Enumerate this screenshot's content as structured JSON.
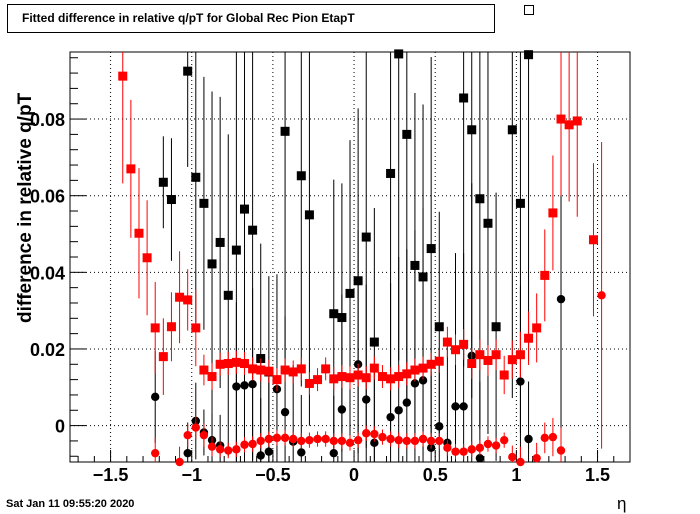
{
  "chart_data": {
    "type": "scatter",
    "title": "Fitted difference in relative q/pT for Global Rec Pion EtapT",
    "xlabel": "η",
    "ylabel": "difference in relative q/pT",
    "xlim": [
      -1.75,
      1.7
    ],
    "ylim": [
      -0.0095,
      0.0975
    ],
    "x_ticks": [
      -1.5,
      -1,
      -0.5,
      0,
      0.5,
      1,
      1.5
    ],
    "x_tick_labels": [
      "−1.5",
      "−1",
      "−0.5",
      "0",
      "0.5",
      "1",
      "1.5"
    ],
    "y_ticks": [
      0,
      0.02,
      0.04,
      0.06,
      0.08
    ],
    "y_tick_labels": [
      "0",
      "0.02",
      "0.04",
      "0.06",
      "0.08"
    ],
    "grid": true,
    "series": [
      {
        "marker": "square",
        "color": "#000000",
        "points": [
          {
            "x": -1.175,
            "y": 0.0635,
            "err": 0.012
          },
          {
            "x": -1.125,
            "y": 0.059,
            "err": 0.016
          },
          {
            "x": -1.025,
            "y": 0.0925,
            "err": 0.025
          },
          {
            "x": -0.975,
            "y": 0.0648,
            "err": 0.038
          },
          {
            "x": -0.925,
            "y": 0.058,
            "err": 0.033
          },
          {
            "x": -0.875,
            "y": 0.0422,
            "err": 0.045
          },
          {
            "x": -0.825,
            "y": 0.0478,
            "err": 0.038
          },
          {
            "x": -0.775,
            "y": 0.034,
            "err": 0.042
          },
          {
            "x": -0.725,
            "y": 0.0458,
            "err": 0.055
          },
          {
            "x": -0.675,
            "y": 0.0565,
            "err": 0.055
          },
          {
            "x": -0.625,
            "y": 0.051,
            "err": 0.06
          },
          {
            "x": -0.575,
            "y": 0.0175,
            "err": 0.03
          },
          {
            "x": -0.525,
            "y": 0.014,
            "err": 0.025
          },
          {
            "x": -0.425,
            "y": 0.0768,
            "err": 0.065
          },
          {
            "x": -0.325,
            "y": 0.0652,
            "err": 0.055
          },
          {
            "x": -0.275,
            "y": 0.055,
            "err": 0.055
          },
          {
            "x": -0.125,
            "y": 0.0292,
            "err": 0.035
          },
          {
            "x": -0.075,
            "y": 0.0282,
            "err": 0.035
          },
          {
            "x": -0.025,
            "y": 0.0345,
            "err": 0.04
          },
          {
            "x": 0.025,
            "y": 0.0378,
            "err": 0.045
          },
          {
            "x": 0.075,
            "y": 0.0492,
            "err": 0.055
          },
          {
            "x": 0.125,
            "y": 0.0218,
            "err": 0.035
          },
          {
            "x": 0.225,
            "y": 0.0658,
            "err": 0.07
          },
          {
            "x": 0.275,
            "y": 0.097,
            "err": 0.08
          },
          {
            "x": 0.325,
            "y": 0.076,
            "err": 0.07
          },
          {
            "x": 0.375,
            "y": 0.0418,
            "err": 0.045
          },
          {
            "x": 0.425,
            "y": 0.0388,
            "err": 0.045
          },
          {
            "x": 0.475,
            "y": 0.0462,
            "err": 0.05
          },
          {
            "x": 0.525,
            "y": 0.0258,
            "err": 0.03
          },
          {
            "x": 0.675,
            "y": 0.0855,
            "err": 0.07
          },
          {
            "x": 0.725,
            "y": 0.0772,
            "err": 0.07
          },
          {
            "x": 0.775,
            "y": 0.0592,
            "err": 0.06
          },
          {
            "x": 0.825,
            "y": 0.0528,
            "err": 0.055
          },
          {
            "x": 0.875,
            "y": 0.0258,
            "err": 0.035
          },
          {
            "x": 0.975,
            "y": 0.0772,
            "err": 0.07
          },
          {
            "x": 1.025,
            "y": 0.058,
            "err": 0.06
          },
          {
            "x": 1.075,
            "y": 0.0968,
            "err": 0.08
          }
        ]
      },
      {
        "marker": "circle",
        "color": "#000000",
        "points": [
          {
            "x": -1.225,
            "y": 0.0075,
            "err": 0.012
          },
          {
            "x": -1.025,
            "y": -0.0072,
            "err": 0.008
          },
          {
            "x": -0.975,
            "y": 0.0012,
            "err": 0.01
          },
          {
            "x": -0.925,
            "y": -0.0018,
            "err": 0.006
          },
          {
            "x": -0.875,
            "y": -0.0038,
            "err": 0.007
          },
          {
            "x": -0.825,
            "y": -0.0052,
            "err": 0.008
          },
          {
            "x": -0.725,
            "y": 0.0102,
            "err": 0.022
          },
          {
            "x": -0.675,
            "y": 0.0105,
            "err": 0.02
          },
          {
            "x": -0.625,
            "y": 0.0108,
            "err": 0.025
          },
          {
            "x": -0.575,
            "y": -0.0078,
            "err": 0.015
          },
          {
            "x": -0.525,
            "y": -0.0068,
            "err": 0.02
          },
          {
            "x": -0.475,
            "y": 0.0095,
            "err": 0.03
          },
          {
            "x": -0.425,
            "y": 0.0035,
            "err": 0.025
          },
          {
            "x": -0.375,
            "y": -0.0042,
            "err": 0.02
          },
          {
            "x": -0.325,
            "y": -0.007,
            "err": 0.015
          },
          {
            "x": -0.125,
            "y": -0.0072,
            "err": 0.015
          },
          {
            "x": -0.075,
            "y": 0.0042,
            "err": 0.03
          },
          {
            "x": 0.025,
            "y": 0.016,
            "err": 0.035
          },
          {
            "x": 0.075,
            "y": 0.0068,
            "err": 0.03
          },
          {
            "x": 0.125,
            "y": -0.0045,
            "err": 0.02
          },
          {
            "x": 0.225,
            "y": 0.0022,
            "err": 0.035
          },
          {
            "x": 0.275,
            "y": 0.004,
            "err": 0.04
          },
          {
            "x": 0.325,
            "y": 0.006,
            "err": 0.04
          },
          {
            "x": 0.375,
            "y": 0.011,
            "err": 0.04
          },
          {
            "x": 0.425,
            "y": 0.0118,
            "err": 0.045
          },
          {
            "x": 0.475,
            "y": -0.0058,
            "err": 0.02
          },
          {
            "x": 0.525,
            "y": -0.0002,
            "err": 0.02
          },
          {
            "x": 0.575,
            "y": -0.0045,
            "err": 0.025
          },
          {
            "x": 0.625,
            "y": 0.005,
            "err": 0.04
          },
          {
            "x": 0.675,
            "y": 0.005,
            "err": 0.04
          },
          {
            "x": 0.725,
            "y": 0.0182,
            "err": 0.045
          },
          {
            "x": 0.775,
            "y": -0.0085,
            "err": 0.02
          },
          {
            "x": 1.025,
            "y": 0.0115,
            "err": 0.025
          },
          {
            "x": 1.075,
            "y": -0.0035,
            "err": 0.015
          },
          {
            "x": 1.275,
            "y": 0.033,
            "err": 0.045
          }
        ]
      },
      {
        "marker": "square",
        "color": "#ff0000",
        "points": [
          {
            "x": -1.425,
            "y": 0.0912,
            "err": 0.028
          },
          {
            "x": -1.375,
            "y": 0.067,
            "err": 0.018
          },
          {
            "x": -1.325,
            "y": 0.0502,
            "err": 0.017
          },
          {
            "x": -1.275,
            "y": 0.0438,
            "err": 0.015
          },
          {
            "x": -1.225,
            "y": 0.0255,
            "err": 0.012
          },
          {
            "x": -1.175,
            "y": 0.018,
            "err": 0.01
          },
          {
            "x": -1.125,
            "y": 0.0258,
            "err": 0.009
          },
          {
            "x": -1.075,
            "y": 0.0335,
            "err": 0.012
          },
          {
            "x": -1.025,
            "y": 0.0328,
            "err": 0.008
          },
          {
            "x": -0.975,
            "y": 0.0255,
            "err": 0.01
          },
          {
            "x": -0.925,
            "y": 0.0145,
            "err": 0.004
          },
          {
            "x": -0.875,
            "y": 0.0128,
            "err": 0.0035
          },
          {
            "x": -0.825,
            "y": 0.016,
            "err": 0.003
          },
          {
            "x": -0.775,
            "y": 0.0162,
            "err": 0.003
          },
          {
            "x": -0.725,
            "y": 0.0165,
            "err": 0.003
          },
          {
            "x": -0.675,
            "y": 0.0162,
            "err": 0.003
          },
          {
            "x": -0.625,
            "y": 0.0148,
            "err": 0.003
          },
          {
            "x": -0.575,
            "y": 0.0145,
            "err": 0.003
          },
          {
            "x": -0.525,
            "y": 0.0142,
            "err": 0.003
          },
          {
            "x": -0.475,
            "y": 0.012,
            "err": 0.003
          },
          {
            "x": -0.425,
            "y": 0.0145,
            "err": 0.003
          },
          {
            "x": -0.375,
            "y": 0.014,
            "err": 0.003
          },
          {
            "x": -0.325,
            "y": 0.0148,
            "err": 0.003
          },
          {
            "x": -0.275,
            "y": 0.011,
            "err": 0.003
          },
          {
            "x": -0.225,
            "y": 0.012,
            "err": 0.003
          },
          {
            "x": -0.175,
            "y": 0.0148,
            "err": 0.003
          },
          {
            "x": -0.125,
            "y": 0.0122,
            "err": 0.003
          },
          {
            "x": -0.075,
            "y": 0.0128,
            "err": 0.003
          },
          {
            "x": -0.025,
            "y": 0.0125,
            "err": 0.003
          },
          {
            "x": 0.025,
            "y": 0.0132,
            "err": 0.003
          },
          {
            "x": 0.075,
            "y": 0.0125,
            "err": 0.003
          },
          {
            "x": 0.125,
            "y": 0.015,
            "err": 0.003
          },
          {
            "x": 0.175,
            "y": 0.0128,
            "err": 0.003
          },
          {
            "x": 0.225,
            "y": 0.0122,
            "err": 0.003
          },
          {
            "x": 0.275,
            "y": 0.0128,
            "err": 0.003
          },
          {
            "x": 0.325,
            "y": 0.0135,
            "err": 0.003
          },
          {
            "x": 0.375,
            "y": 0.0145,
            "err": 0.003
          },
          {
            "x": 0.425,
            "y": 0.015,
            "err": 0.003
          },
          {
            "x": 0.475,
            "y": 0.016,
            "err": 0.003
          },
          {
            "x": 0.525,
            "y": 0.0168,
            "err": 0.003
          },
          {
            "x": 0.575,
            "y": 0.0218,
            "err": 0.004
          },
          {
            "x": 0.625,
            "y": 0.0198,
            "err": 0.004
          },
          {
            "x": 0.675,
            "y": 0.0212,
            "err": 0.004
          },
          {
            "x": 0.725,
            "y": 0.0162,
            "err": 0.004
          },
          {
            "x": 0.775,
            "y": 0.0185,
            "err": 0.004
          },
          {
            "x": 0.825,
            "y": 0.017,
            "err": 0.004
          },
          {
            "x": 0.875,
            "y": 0.0185,
            "err": 0.004
          },
          {
            "x": 0.925,
            "y": 0.0132,
            "err": 0.005
          },
          {
            "x": 0.975,
            "y": 0.0172,
            "err": 0.005
          },
          {
            "x": 1.025,
            "y": 0.0185,
            "err": 0.006
          },
          {
            "x": 1.075,
            "y": 0.0228,
            "err": 0.007
          },
          {
            "x": 1.125,
            "y": 0.0255,
            "err": 0.009
          },
          {
            "x": 1.175,
            "y": 0.0392,
            "err": 0.012
          },
          {
            "x": 1.225,
            "y": 0.0555,
            "err": 0.015
          },
          {
            "x": 1.275,
            "y": 0.08,
            "err": 0.02
          },
          {
            "x": 1.325,
            "y": 0.0785,
            "err": 0.02
          },
          {
            "x": 1.375,
            "y": 0.0795,
            "err": 0.025
          },
          {
            "x": 1.475,
            "y": 0.0485,
            "err": 0.02
          }
        ]
      },
      {
        "marker": "circle",
        "color": "#ff0000",
        "points": [
          {
            "x": -1.225,
            "y": -0.0072,
            "err": 0.004
          },
          {
            "x": -1.075,
            "y": -0.0095,
            "err": 0.004
          },
          {
            "x": -1.025,
            "y": -0.0025,
            "err": 0.003
          },
          {
            "x": -0.975,
            "y": -0.0005,
            "err": 0.003
          },
          {
            "x": -0.925,
            "y": -0.0025,
            "err": 0.003
          },
          {
            "x": -0.875,
            "y": -0.0055,
            "err": 0.0025
          },
          {
            "x": -0.825,
            "y": -0.0062,
            "err": 0.002
          },
          {
            "x": -0.775,
            "y": -0.0065,
            "err": 0.002
          },
          {
            "x": -0.725,
            "y": -0.0062,
            "err": 0.002
          },
          {
            "x": -0.675,
            "y": -0.005,
            "err": 0.002
          },
          {
            "x": -0.625,
            "y": -0.0048,
            "err": 0.002
          },
          {
            "x": -0.575,
            "y": -0.004,
            "err": 0.002
          },
          {
            "x": -0.525,
            "y": -0.0035,
            "err": 0.002
          },
          {
            "x": -0.475,
            "y": -0.0032,
            "err": 0.002
          },
          {
            "x": -0.425,
            "y": -0.0032,
            "err": 0.002
          },
          {
            "x": -0.375,
            "y": -0.0035,
            "err": 0.002
          },
          {
            "x": -0.325,
            "y": -0.004,
            "err": 0.002
          },
          {
            "x": -0.275,
            "y": -0.0038,
            "err": 0.002
          },
          {
            "x": -0.225,
            "y": -0.0035,
            "err": 0.002
          },
          {
            "x": -0.175,
            "y": -0.0035,
            "err": 0.002
          },
          {
            "x": -0.125,
            "y": -0.004,
            "err": 0.002
          },
          {
            "x": -0.075,
            "y": -0.004,
            "err": 0.002
          },
          {
            "x": -0.025,
            "y": -0.0045,
            "err": 0.002
          },
          {
            "x": 0.025,
            "y": -0.0038,
            "err": 0.002
          },
          {
            "x": 0.075,
            "y": -0.002,
            "err": 0.002
          },
          {
            "x": 0.125,
            "y": -0.0022,
            "err": 0.002
          },
          {
            "x": 0.175,
            "y": -0.003,
            "err": 0.002
          },
          {
            "x": 0.225,
            "y": -0.0035,
            "err": 0.002
          },
          {
            "x": 0.275,
            "y": -0.0038,
            "err": 0.002
          },
          {
            "x": 0.325,
            "y": -0.004,
            "err": 0.002
          },
          {
            "x": 0.375,
            "y": -0.004,
            "err": 0.002
          },
          {
            "x": 0.425,
            "y": -0.0035,
            "err": 0.002
          },
          {
            "x": 0.475,
            "y": -0.004,
            "err": 0.002
          },
          {
            "x": 0.525,
            "y": -0.004,
            "err": 0.002
          },
          {
            "x": 0.575,
            "y": -0.0058,
            "err": 0.002
          },
          {
            "x": 0.625,
            "y": -0.0068,
            "err": 0.002
          },
          {
            "x": 0.675,
            "y": -0.0068,
            "err": 0.002
          },
          {
            "x": 0.725,
            "y": -0.0062,
            "err": 0.002
          },
          {
            "x": 0.775,
            "y": -0.0058,
            "err": 0.002
          },
          {
            "x": 0.825,
            "y": -0.0048,
            "err": 0.002
          },
          {
            "x": 0.875,
            "y": -0.0052,
            "err": 0.002
          },
          {
            "x": 0.925,
            "y": -0.0038,
            "err": 0.002
          },
          {
            "x": 0.975,
            "y": -0.0082,
            "err": 0.003
          },
          {
            "x": 1.025,
            "y": -0.0095,
            "err": 0.004
          },
          {
            "x": 1.125,
            "y": -0.0085,
            "err": 0.004
          },
          {
            "x": 1.175,
            "y": -0.0032,
            "err": 0.004
          },
          {
            "x": 1.225,
            "y": -0.003,
            "err": 0.005
          },
          {
            "x": 1.275,
            "y": -0.0065,
            "err": 0.006
          },
          {
            "x": 1.525,
            "y": 0.034,
            "err": 0.04
          }
        ]
      }
    ],
    "colors": {
      "black": "#000000",
      "red": "#ff0000"
    }
  },
  "footer": {
    "timestamp": "Sat Jan 11 09:55:20 2020"
  }
}
